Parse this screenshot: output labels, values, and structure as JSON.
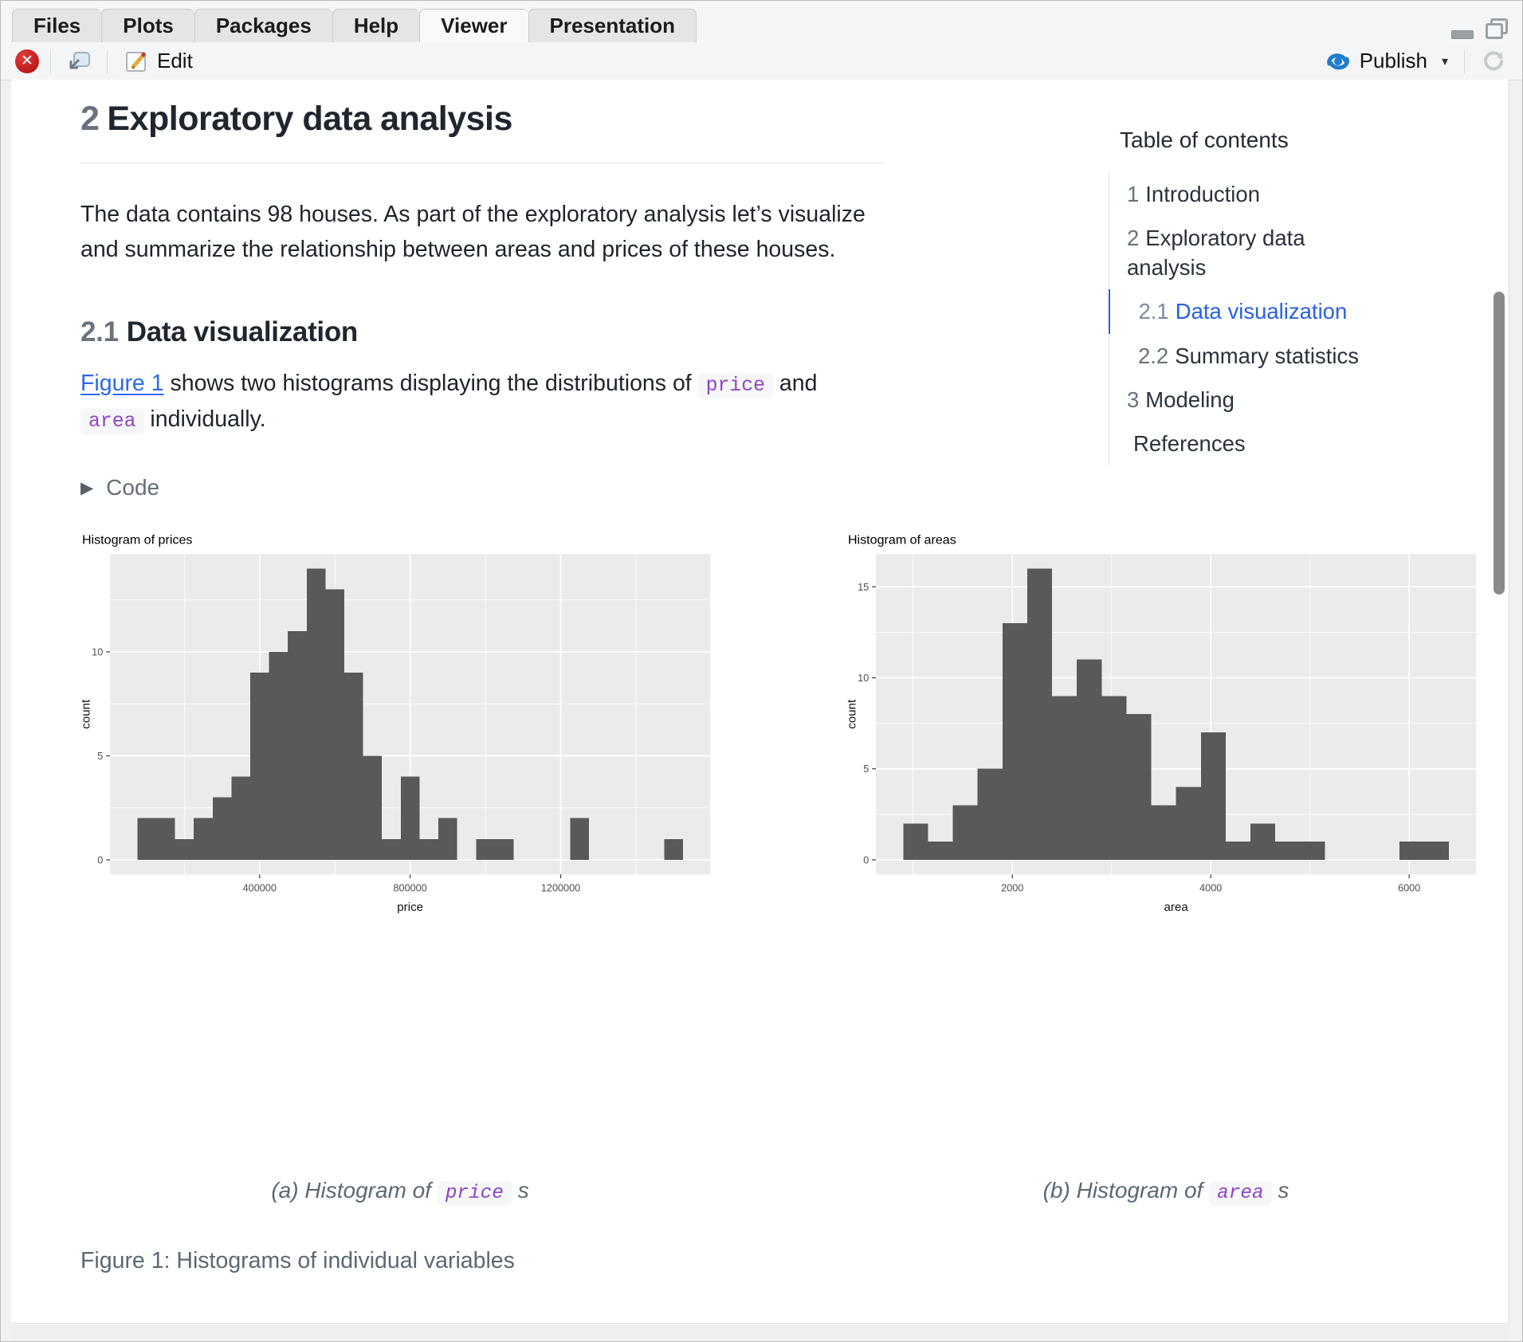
{
  "window": {
    "tabs": [
      {
        "label": "Files"
      },
      {
        "label": "Plots"
      },
      {
        "label": "Packages"
      },
      {
        "label": "Help"
      },
      {
        "label": "Viewer",
        "active": true
      },
      {
        "label": "Presentation"
      }
    ],
    "toolbar": {
      "edit_label": "Edit",
      "publish_label": "Publish"
    }
  },
  "toc": {
    "title": "Table of contents",
    "items": [
      {
        "number": "1",
        "label": "Introduction",
        "level": 1
      },
      {
        "number": "2",
        "label": "Exploratory data analysis",
        "level": 1
      },
      {
        "number": "2.1",
        "label": "Data visualization",
        "level": 2,
        "active": true
      },
      {
        "number": "2.2",
        "label": "Summary statistics",
        "level": 2
      },
      {
        "number": "3",
        "label": "Modeling",
        "level": 1
      },
      {
        "number": "",
        "label": "References",
        "level": 1
      }
    ]
  },
  "article": {
    "h1_number": "2",
    "h1_title": "Exploratory data analysis",
    "p1": "The data contains 98 houses. As part of the exploratory analysis let’s visualize and summarize the relationship between areas and prices of these houses.",
    "h2_number": "2.1",
    "h2_title": "Data visualization",
    "p2": {
      "link": "Figure 1",
      "t1": " shows two histograms displaying the distributions of ",
      "code1": "price",
      "t2": " and ",
      "code2": "area",
      "t3": " individually."
    },
    "code_fold_label": "Code",
    "captions": [
      {
        "pre": "(a) Histogram of ",
        "code": "price",
        "post": "s"
      },
      {
        "pre": "(b) Histogram of ",
        "code": "area",
        "post": "s"
      }
    ],
    "fig_caption": "Figure 1: Histograms of individual variables"
  },
  "colors": {
    "accent_blue": "#2761E3",
    "code_purple": "#8F44C6",
    "publish_blue": "#1E7CCC",
    "bar_fill": "#595959",
    "panel_bg": "#EBEBEB"
  },
  "chart_data": [
    {
      "type": "bar",
      "histogram": true,
      "title": "Histogram of prices",
      "xlabel": "price",
      "ylabel": "count",
      "bin_start": 75000,
      "bin_width": 50000,
      "counts": [
        2,
        2,
        1,
        2,
        3,
        4,
        9,
        10,
        11,
        14,
        13,
        9,
        5,
        1,
        4,
        1,
        2,
        0,
        1,
        1,
        0,
        0,
        0,
        2,
        0,
        0,
        0,
        0,
        1
      ],
      "total_count": 98,
      "x_ticks": [
        400000,
        800000,
        1200000
      ],
      "x_tick_labels": [
        "400000",
        "800000",
        "1200000"
      ],
      "x_minor": [
        200000,
        600000,
        1000000,
        1400000
      ],
      "y_ticks": [
        0,
        5,
        10
      ],
      "y_tick_labels": [
        "0",
        "5",
        "10"
      ],
      "y_minor": [
        2.5,
        7.5,
        12.5
      ],
      "ylim": [
        0,
        14
      ],
      "grid": "on",
      "legend": "none"
    },
    {
      "type": "bar",
      "histogram": true,
      "title": "Histogram of areas",
      "xlabel": "area",
      "ylabel": "count",
      "bin_start": 900,
      "bin_width": 250,
      "counts": [
        2,
        1,
        3,
        5,
        13,
        16,
        9,
        11,
        9,
        8,
        3,
        4,
        7,
        1,
        2,
        1,
        1,
        0,
        0,
        0,
        1,
        1
      ],
      "total_count": 98,
      "x_ticks": [
        2000,
        4000,
        6000
      ],
      "x_tick_labels": [
        "2000",
        "4000",
        "6000"
      ],
      "x_minor": [
        1000,
        3000,
        5000
      ],
      "y_ticks": [
        0,
        5,
        10,
        15
      ],
      "y_tick_labels": [
        "0",
        "5",
        "10",
        "15"
      ],
      "y_minor": [
        2.5,
        7.5,
        12.5
      ],
      "ylim": [
        0,
        16
      ],
      "grid": "on",
      "legend": "none"
    }
  ]
}
